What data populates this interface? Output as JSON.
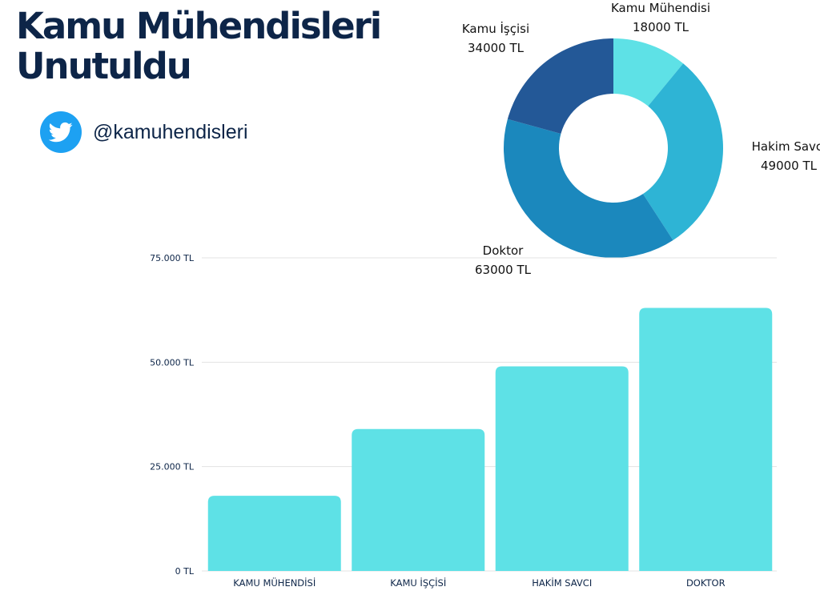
{
  "header": {
    "title_line1": "Kamu Mühendisleri",
    "title_line2": "Unutuldu",
    "twitter_handle": "@kamuhendisleri"
  },
  "icons": {
    "social": "twitter-bird-icon"
  },
  "colors": {
    "title": "#0d2548",
    "twitter": "#1da1f2",
    "bar": "#5ee1e6",
    "donut": [
      "#5ee1e6",
      "#2eb4d5",
      "#1b88bd",
      "#235897"
    ]
  },
  "chart_data": [
    {
      "type": "pie",
      "donut": true,
      "categories": [
        "Kamu Mühendisi",
        "Hakim Savcı",
        "Doktor",
        "Kamu İşçisi"
      ],
      "values": [
        18000,
        49000,
        63000,
        34000
      ],
      "value_labels": [
        "18000 TL",
        "49000 TL",
        "63000 TL",
        "34000 TL"
      ]
    },
    {
      "type": "bar",
      "categories": [
        "KAMU MÜHENDİSİ",
        "KAMU İŞÇİSİ",
        "HAKİM SAVCI",
        "DOKTOR"
      ],
      "values": [
        18000,
        34000,
        49000,
        63000
      ],
      "ylim": [
        0,
        75000
      ],
      "yticks": [
        0,
        25000,
        50000,
        75000
      ],
      "ytick_labels": [
        "0 TL",
        "25.000 TL",
        "50.000 TL",
        "75.000 TL"
      ],
      "grid": true
    }
  ]
}
